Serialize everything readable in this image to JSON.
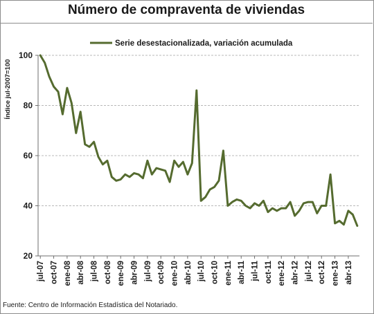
{
  "chart_data": {
    "type": "line",
    "title": "Número de compraventa de viviendas",
    "ylabel": "Índice jul-2007=100",
    "ylim": [
      20,
      100
    ],
    "yticks": [
      20,
      40,
      60,
      80,
      100
    ],
    "grid": true,
    "legend_position": "top",
    "series": [
      {
        "name": "Serie desestacionalizada, variación acumulada",
        "color": "#556b2f",
        "values": [
          100,
          97,
          91.5,
          87.5,
          85.5,
          76.5,
          87,
          81,
          69,
          77.5,
          64.5,
          63.5,
          65.5,
          59.5,
          56.5,
          58,
          51.5,
          50,
          50.5,
          52.5,
          51.5,
          53,
          52.5,
          51,
          58,
          52.5,
          55,
          54.5,
          54,
          49.5,
          58,
          55.5,
          57.5,
          52.5,
          57,
          86,
          42,
          43.5,
          46.5,
          47.5,
          50,
          62,
          40,
          41.5,
          42.5,
          42,
          40,
          39,
          41,
          40,
          42,
          37.5,
          39,
          38,
          39,
          39,
          41.5,
          36,
          38,
          41,
          41.5,
          41.5,
          37,
          40,
          40,
          52.5,
          33,
          34,
          32.5,
          38,
          36.5,
          32
        ]
      }
    ],
    "x_tick_labels": [
      "jul-07",
      "oct-07",
      "ene-08",
      "abr-08",
      "jul-08",
      "oct-08",
      "ene-09",
      "abr-09",
      "jul-09",
      "oct-09",
      "ene-10",
      "abr-10",
      "jul-10",
      "oct-10",
      "ene-11",
      "abr-11",
      "jul-11",
      "oct-11",
      "ene-12",
      "abr-12",
      "jul-12",
      "oct-12",
      "ene-13",
      "abr-13"
    ]
  },
  "source_note": "Fuente: Centro de Información Estadística del Notariado."
}
